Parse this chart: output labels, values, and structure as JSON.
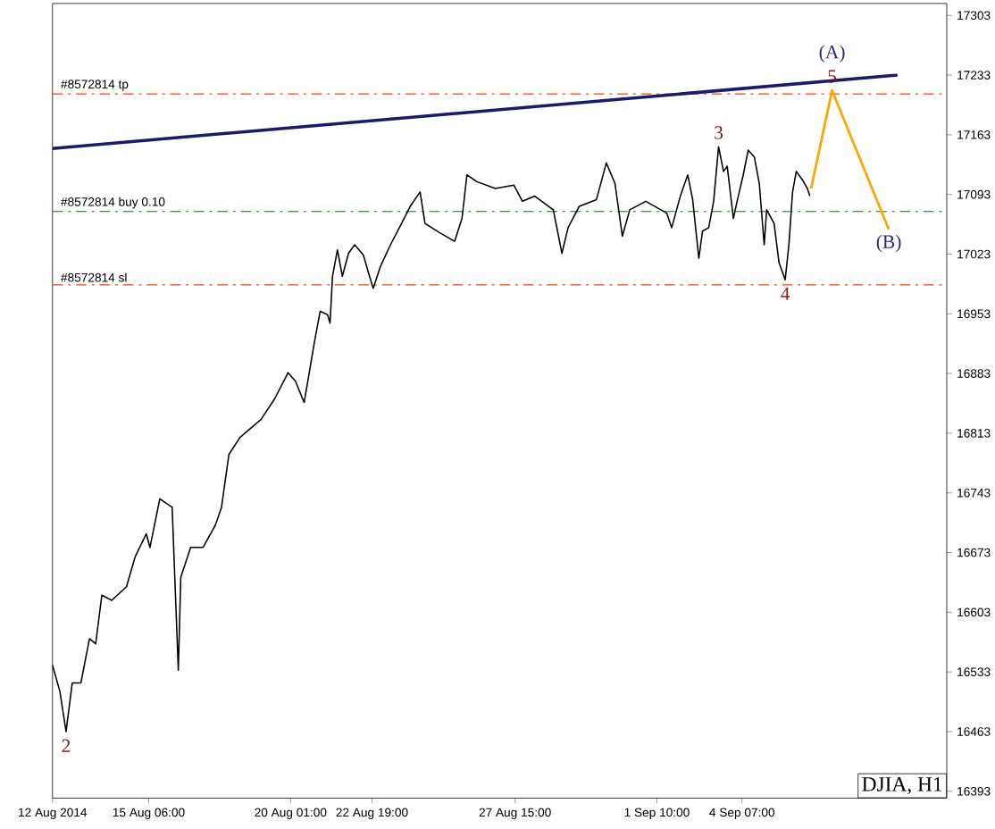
{
  "chart_data": {
    "type": "line",
    "xlim": [
      "2014-08-12T00:00",
      "2014-09-11T05:00"
    ],
    "ylim": [
      16385,
      17317
    ],
    "xticks": [
      {
        "value": "2014-08-12T00:00",
        "label": "12 Aug 2014"
      },
      {
        "value": "2014-08-15T06:00",
        "label": "15 Aug 06:00"
      },
      {
        "value": "2014-08-20T01:00",
        "label": "20 Aug 01:00"
      },
      {
        "value": "2014-08-22T19:00",
        "label": "22 Aug 19:00"
      },
      {
        "value": "2014-08-27T15:00",
        "label": "27 Aug 15:00"
      },
      {
        "value": "2014-09-01T10:00",
        "label": "1 Sep 10:00"
      },
      {
        "value": "2014-09-04T07:00",
        "label": "4 Sep 07:00"
      }
    ],
    "yticks": [
      16393,
      16463,
      16533,
      16603,
      16673,
      16743,
      16813,
      16883,
      16953,
      17023,
      17093,
      17163,
      17233,
      17303
    ],
    "grid": false,
    "marker": "none",
    "series": [
      {
        "color": "#000000",
        "x": [
          "2014-08-12T00:00",
          "2014-08-12T06:00",
          "2014-08-12T11:00",
          "2014-08-12T16:00",
          "2014-08-12T23:00",
          "2014-08-13T06:00",
          "2014-08-13T11:00",
          "2014-08-13T16:00",
          "2014-08-14T00:00",
          "2014-08-14T12:00",
          "2014-08-14T19:00",
          "2014-08-15T04:00",
          "2014-08-15T07:00",
          "2014-08-15T15:00",
          "2014-08-16T01:00",
          "2014-08-16T06:00",
          "2014-08-16T08:00",
          "2014-08-16T16:00",
          "2014-08-17T02:00",
          "2014-08-17T12:00",
          "2014-08-17T17:00",
          "2014-08-17T23:00",
          "2014-08-18T08:00",
          "2014-08-19T01:00",
          "2014-08-19T12:00",
          "2014-08-19T23:00",
          "2014-08-20T05:00",
          "2014-08-20T12:00",
          "2014-08-20T15:00",
          "2014-08-20T20:00",
          "2014-08-21T01:00",
          "2014-08-21T07:00",
          "2014-08-21T09:00",
          "2014-08-21T11:00",
          "2014-08-21T15:00",
          "2014-08-21T19:00",
          "2014-08-22T00:00",
          "2014-08-22T05:00",
          "2014-08-22T12:00",
          "2014-08-22T17:00",
          "2014-08-22T20:00",
          "2014-08-23T02:00",
          "2014-08-23T10:00",
          "2014-08-23T19:00",
          "2014-08-24T02:00",
          "2014-08-24T10:00",
          "2014-08-24T14:00",
          "2014-08-25T02:00",
          "2014-08-25T14:00",
          "2014-08-25T20:00",
          "2014-08-26T00:00",
          "2014-08-26T08:00",
          "2014-08-26T23:00",
          "2014-08-27T14:00",
          "2014-08-27T21:00",
          "2014-08-28T07:00",
          "2014-08-28T22:00",
          "2014-08-29T05:00",
          "2014-08-29T10:00",
          "2014-08-29T19:00",
          "2014-08-30T09:00",
          "2014-08-30T17:00",
          "2014-08-31T00:00",
          "2014-08-31T06:00",
          "2014-08-31T12:00",
          "2014-09-01T01:00",
          "2014-09-01T18:00",
          "2014-09-01T22:00",
          "2014-09-02T05:00",
          "2014-09-02T11:00",
          "2014-09-02T15:00",
          "2014-09-02T20:00",
          "2014-09-02T23:00",
          "2014-09-03T04:00",
          "2014-09-03T08:00",
          "2014-09-03T12:00",
          "2014-09-03T16:00",
          "2014-09-03T19:00",
          "2014-09-04T00:00",
          "2014-09-04T03:00",
          "2014-09-04T08:00",
          "2014-09-04T12:00",
          "2014-09-04T17:00",
          "2014-09-04T21:00",
          "2014-09-05T01:00",
          "2014-09-05T03:00",
          "2014-09-05T09:00",
          "2014-09-05T13:00",
          "2014-09-05T18:00",
          "2014-09-05T21:00",
          "2014-09-06T00:00",
          "2014-09-06T03:00",
          "2014-09-06T08:00",
          "2014-09-06T12:00",
          "2014-09-06T14:00"
        ],
        "values": [
          16541,
          16510,
          16463,
          16520,
          16520,
          16572,
          16566,
          16623,
          16617,
          16633,
          16668,
          16695,
          16679,
          16736,
          16726,
          16535,
          16644,
          16679,
          16679,
          16705,
          16726,
          16788,
          16808,
          16829,
          16853,
          16884,
          16874,
          16849,
          16874,
          16917,
          16956,
          16952,
          16942,
          16997,
          17028,
          16997,
          17024,
          17034,
          17022,
          16997,
          16983,
          17009,
          17034,
          17059,
          17079,
          17096,
          17059,
          17048,
          17038,
          17065,
          17116,
          17108,
          17100,
          17104,
          17085,
          17091,
          17075,
          17024,
          17054,
          17079,
          17087,
          17130,
          17106,
          17044,
          17075,
          17085,
          17071,
          17054,
          17091,
          17116,
          17087,
          17018,
          17050,
          17054,
          17085,
          17149,
          17120,
          17126,
          17065,
          17085,
          17116,
          17145,
          17137,
          17106,
          17034,
          17075,
          17059,
          17013,
          16993,
          17034,
          17096,
          17120,
          17110,
          17100,
          17091
        ]
      },
      {
        "color": "#1a1a6e",
        "x": [
          "2014-08-12T00:00",
          "2014-09-09T13:00"
        ],
        "values": [
          17147,
          17233
        ]
      },
      {
        "color": "#ffa500",
        "x": [
          "2014-09-06T15:00",
          "2014-09-07T08:00",
          "2014-09-09T06:00"
        ],
        "values": [
          17100,
          17215,
          17052
        ]
      }
    ],
    "ref_lines": [
      {
        "axis": "y",
        "value": 17211,
        "label": "#8572814 tp",
        "color": "#ff4500",
        "line_style": "dashed"
      },
      {
        "axis": "y",
        "value": 17073,
        "label": "#8572814 buy 0.10",
        "color": "#008000",
        "line_style": "dashed"
      },
      {
        "axis": "y",
        "value": 16987,
        "label": "#8572814 sl",
        "color": "#ff4500",
        "line_style": "dashed"
      }
    ],
    "annotations": [
      {
        "text": "2",
        "x": "2014-08-12T11:00",
        "y": 16463
      },
      {
        "text": "3",
        "x": "2014-09-03T12:00",
        "y": 17149
      },
      {
        "text": "4",
        "x": "2014-09-05T18:00",
        "y": 16993
      },
      {
        "text": "5",
        "x": "2014-09-07T08:00",
        "y": 17215
      },
      {
        "text": "(A)",
        "x": "2014-09-07T08:00",
        "y": 17215
      },
      {
        "text": "(B)",
        "x": "2014-09-09T06:00",
        "y": 17052
      },
      "DJIA, H1"
    ]
  }
}
